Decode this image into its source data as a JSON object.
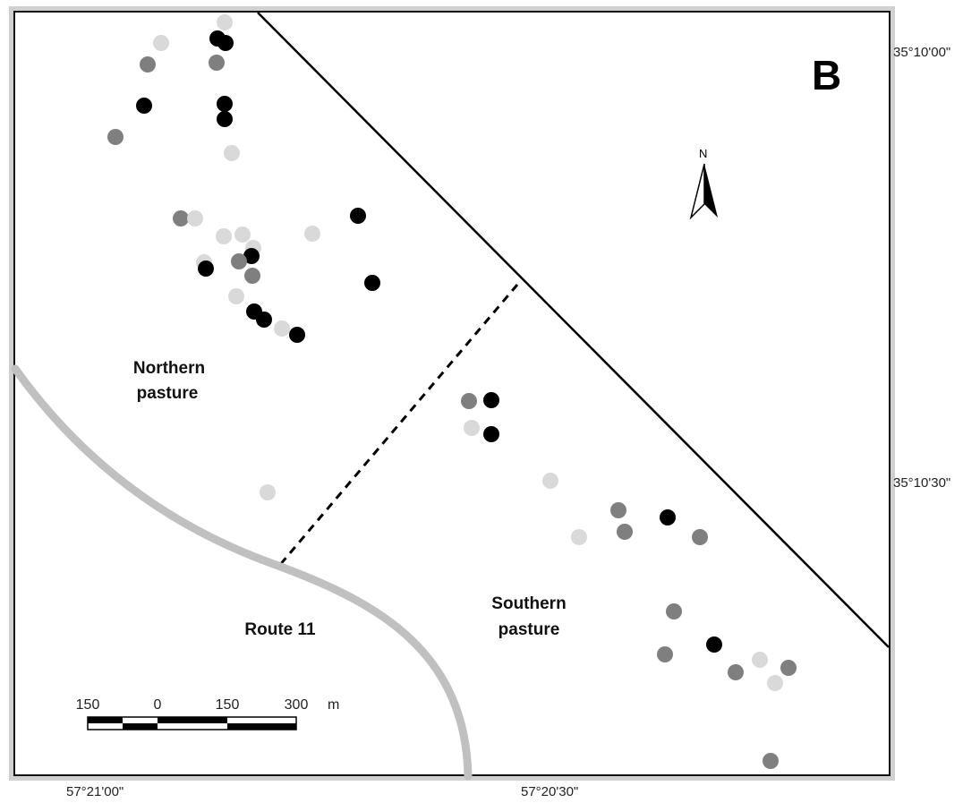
{
  "panel_label": "B",
  "north_label": "N",
  "latitude_labels": [
    "35°10'00\"",
    "35°10'30\""
  ],
  "longitude_labels": [
    "57°21'00\"",
    "57°20'30\""
  ],
  "region_labels": {
    "northern": [
      "Northern",
      "pasture"
    ],
    "southern": [
      "Southern",
      "pasture"
    ],
    "road": "Route 11"
  },
  "scale_bar": {
    "ticks": [
      "150",
      "0",
      "150",
      "300"
    ],
    "unit": "m"
  },
  "colors": {
    "black": "#000000",
    "dark_gray": "#7f7f7f",
    "light_gray": "#d9d9d9",
    "road": "#c0c0c0",
    "frame": "#111111"
  },
  "point_categories": [
    "black",
    "dark_gray",
    "light_gray"
  ],
  "points": [
    {
      "lon": "57°20'56\"",
      "lat": "35°09'56\"",
      "category": "light_gray"
    },
    {
      "lon": "57°20'56\"",
      "lat": "35°09'58\"",
      "category": "dark_gray"
    },
    {
      "lon": "57°20'56\"",
      "lat": "35°10'01\"",
      "category": "black"
    },
    {
      "lon": "57°20'58\"",
      "lat": "35°10'03\"",
      "category": "dark_gray"
    }
  ]
}
